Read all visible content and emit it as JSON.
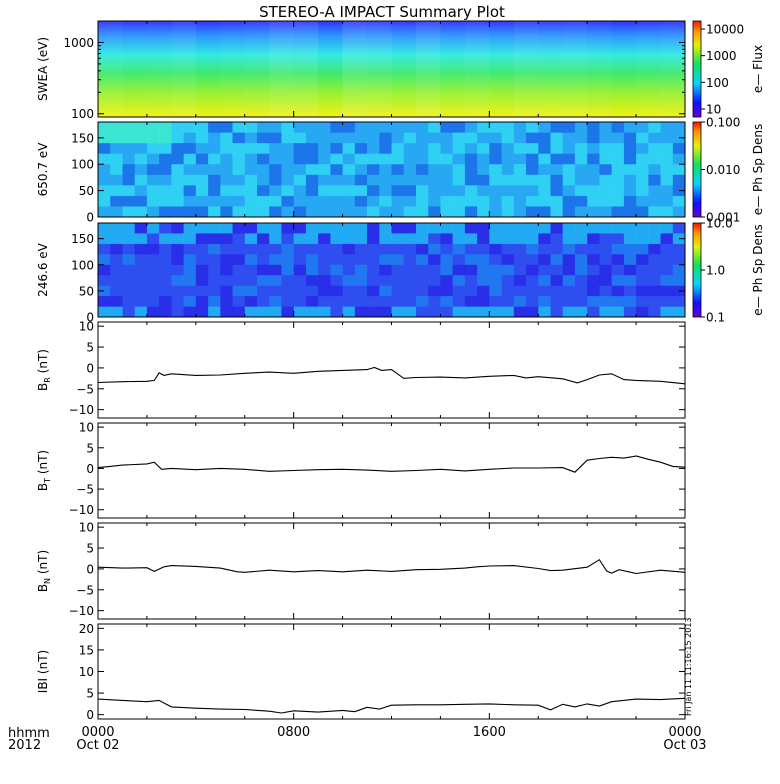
{
  "title": "STEREO-A IMPACT Summary Plot",
  "footer": {
    "hhmm": "hhmm",
    "year": "2012",
    "stamp": "Fri Jan 11 11:16:15 2013"
  },
  "colors": {
    "axis": "#000000",
    "line": "#000000",
    "background": "#ffffff"
  },
  "x_axis": {
    "range_hours": [
      0,
      24
    ],
    "ticks": [
      {
        "hour": 0,
        "label": "0000",
        "sub": "Oct 02"
      },
      {
        "hour": 8,
        "label": "0800",
        "sub": ""
      },
      {
        "hour": 16,
        "label": "1600",
        "sub": ""
      },
      {
        "hour": 24,
        "label": "0000",
        "sub": "Oct 03"
      }
    ]
  },
  "chart_data": [
    {
      "type": "heatmap",
      "name": "swea",
      "ylabel": "SWEA (eV)",
      "yscale": "log",
      "ylim": [
        90,
        2000
      ],
      "yticks": [
        {
          "v": 100,
          "label": "100"
        },
        {
          "v": 1000,
          "label": "1000"
        }
      ],
      "colorbar": {
        "label": "e— Flux",
        "scale": "log",
        "range": [
          5,
          20000
        ],
        "ticks": [
          {
            "v": 10,
            "label": "10"
          },
          {
            "v": 100,
            "label": "100"
          },
          {
            "v": 1000,
            "label": "1000"
          },
          {
            "v": 10000,
            "label": "10000"
          }
        ]
      },
      "description": "electron energy flux spectrogram"
    },
    {
      "type": "heatmap",
      "name": "pad650",
      "ylabel": "650.7 eV",
      "ylim": [
        0,
        180
      ],
      "yticks": [
        {
          "v": 0,
          "label": "0"
        },
        {
          "v": 50,
          "label": "50"
        },
        {
          "v": 100,
          "label": "100"
        },
        {
          "v": 150,
          "label": "150"
        }
      ],
      "colorbar": {
        "label": "e— Ph Sp Dens",
        "scale": "log",
        "range": [
          0.001,
          0.1
        ],
        "ticks": [
          {
            "v": 0.001,
            "label": "0.001"
          },
          {
            "v": 0.01,
            "label": "0.010"
          },
          {
            "v": 0.1,
            "label": "0.100"
          }
        ]
      }
    },
    {
      "type": "heatmap",
      "name": "pad246",
      "ylabel": "246.6 eV",
      "ylim": [
        0,
        180
      ],
      "yticks": [
        {
          "v": 0,
          "label": "0"
        },
        {
          "v": 50,
          "label": "50"
        },
        {
          "v": 100,
          "label": "100"
        },
        {
          "v": 150,
          "label": "150"
        }
      ],
      "colorbar": {
        "label": "e— Ph Sp Dens",
        "scale": "log",
        "range": [
          0.1,
          10
        ],
        "ticks": [
          {
            "v": 0.1,
            "label": "0.1"
          },
          {
            "v": 1,
            "label": "1.0"
          },
          {
            "v": 10,
            "label": "10.0"
          }
        ]
      }
    },
    {
      "type": "line",
      "name": "BR",
      "ylabel": "B",
      "ysub": "R",
      "yunit": " (nT)",
      "ylim": [
        -12,
        11
      ],
      "yticks": [
        {
          "v": -10,
          "label": "−10"
        },
        {
          "v": -5,
          "label": "−5"
        },
        {
          "v": 0,
          "label": "0"
        },
        {
          "v": 5,
          "label": "5"
        },
        {
          "v": 10,
          "label": "10"
        }
      ],
      "x": [
        0,
        1,
        2,
        2.3,
        2.5,
        2.7,
        3,
        4,
        5,
        6,
        7,
        8,
        9,
        10,
        11,
        11.3,
        11.6,
        12,
        12.5,
        13,
        14,
        15,
        16,
        17,
        17.5,
        18,
        19,
        19.6,
        20,
        20.5,
        21,
        21.5,
        22,
        23,
        24
      ],
      "y": [
        -3.5,
        -3.3,
        -3.2,
        -3.0,
        -1.2,
        -1.8,
        -1.4,
        -1.8,
        -1.7,
        -1.3,
        -1.0,
        -1.3,
        -0.8,
        -0.6,
        -0.4,
        0.1,
        -0.6,
        -0.4,
        -2.5,
        -2.3,
        -2.2,
        -2.4,
        -2.0,
        -1.8,
        -2.4,
        -2.1,
        -2.6,
        -3.6,
        -2.8,
        -1.7,
        -1.4,
        -2.8,
        -3.0,
        -3.2,
        -3.8
      ]
    },
    {
      "type": "line",
      "name": "BT",
      "ylabel": "B",
      "ysub": "T",
      "yunit": " (nT)",
      "ylim": [
        -12,
        11
      ],
      "yticks": [
        {
          "v": -10,
          "label": "−10"
        },
        {
          "v": -5,
          "label": "−5"
        },
        {
          "v": 0,
          "label": "0"
        },
        {
          "v": 5,
          "label": "5"
        },
        {
          "v": 10,
          "label": "10"
        }
      ],
      "x": [
        0,
        0.5,
        1,
        2,
        2.3,
        2.6,
        3,
        4,
        5,
        6,
        7,
        8,
        9,
        10,
        11,
        12,
        13,
        14,
        15,
        16,
        17,
        18,
        19,
        19.5,
        20,
        20.5,
        21,
        21.5,
        22,
        22.5,
        23,
        23.5,
        24
      ],
      "y": [
        0.2,
        0.5,
        0.8,
        1.1,
        1.5,
        -0.2,
        0,
        -0.3,
        0,
        -0.2,
        -0.7,
        -0.5,
        -0.3,
        -0.2,
        -0.4,
        -0.7,
        -0.5,
        -0.2,
        -0.6,
        -0.2,
        0.1,
        0.1,
        0.2,
        -0.9,
        2.0,
        2.4,
        2.7,
        2.5,
        3.0,
        2.2,
        1.5,
        0.5,
        0.3
      ]
    },
    {
      "type": "line",
      "name": "BN",
      "ylabel": "B",
      "ysub": "N",
      "yunit": " (nT)",
      "ylim": [
        -12,
        11
      ],
      "yticks": [
        {
          "v": -10,
          "label": "−10"
        },
        {
          "v": -5,
          "label": "−5"
        },
        {
          "v": 0,
          "label": "0"
        },
        {
          "v": 5,
          "label": "5"
        },
        {
          "v": 10,
          "label": "10"
        }
      ],
      "x": [
        0,
        1,
        2,
        2.3,
        2.7,
        3,
        4,
        5,
        5.7,
        6,
        7,
        8,
        9,
        10,
        11,
        12,
        13,
        14,
        15,
        15.5,
        16,
        17,
        18,
        18.5,
        19,
        20,
        20.5,
        20.8,
        21,
        21.3,
        22,
        23,
        24
      ],
      "y": [
        0.4,
        0.2,
        0.3,
        -0.6,
        0.5,
        0.8,
        0.6,
        0.2,
        -0.7,
        -0.8,
        -0.3,
        -0.7,
        -0.4,
        -0.7,
        -0.3,
        -0.6,
        -0.2,
        -0.1,
        0.2,
        0.5,
        0.7,
        0.8,
        0.1,
        -0.4,
        -0.3,
        0.4,
        2.2,
        -0.5,
        -1.0,
        -0.2,
        -1.1,
        -0.3,
        -0.8
      ]
    },
    {
      "type": "line",
      "name": "B",
      "ylabel": "IBI",
      "ysub": "",
      "yunit": " (nT)",
      "ylim": [
        -1,
        21
      ],
      "yticks": [
        {
          "v": 0,
          "label": "0"
        },
        {
          "v": 5,
          "label": "5"
        },
        {
          "v": 10,
          "label": "10"
        },
        {
          "v": 15,
          "label": "15"
        },
        {
          "v": 20,
          "label": "20"
        }
      ],
      "x": [
        0,
        1,
        2,
        2.5,
        3,
        4,
        5,
        6,
        7,
        7.5,
        8,
        9,
        10,
        10.5,
        11,
        11.5,
        12,
        13,
        14,
        15,
        16,
        17,
        18,
        18.5,
        19,
        19.5,
        20,
        20.5,
        21,
        22,
        23,
        24
      ],
      "y": [
        3.6,
        3.3,
        3.0,
        3.3,
        1.8,
        1.5,
        1.3,
        1.2,
        0.8,
        0.4,
        0.9,
        0.6,
        1.0,
        0.7,
        1.7,
        1.3,
        2.2,
        2.3,
        2.3,
        2.4,
        2.5,
        2.3,
        2.2,
        1.1,
        2.4,
        1.8,
        2.5,
        2.0,
        3.0,
        3.6,
        3.5,
        3.8
      ]
    }
  ]
}
